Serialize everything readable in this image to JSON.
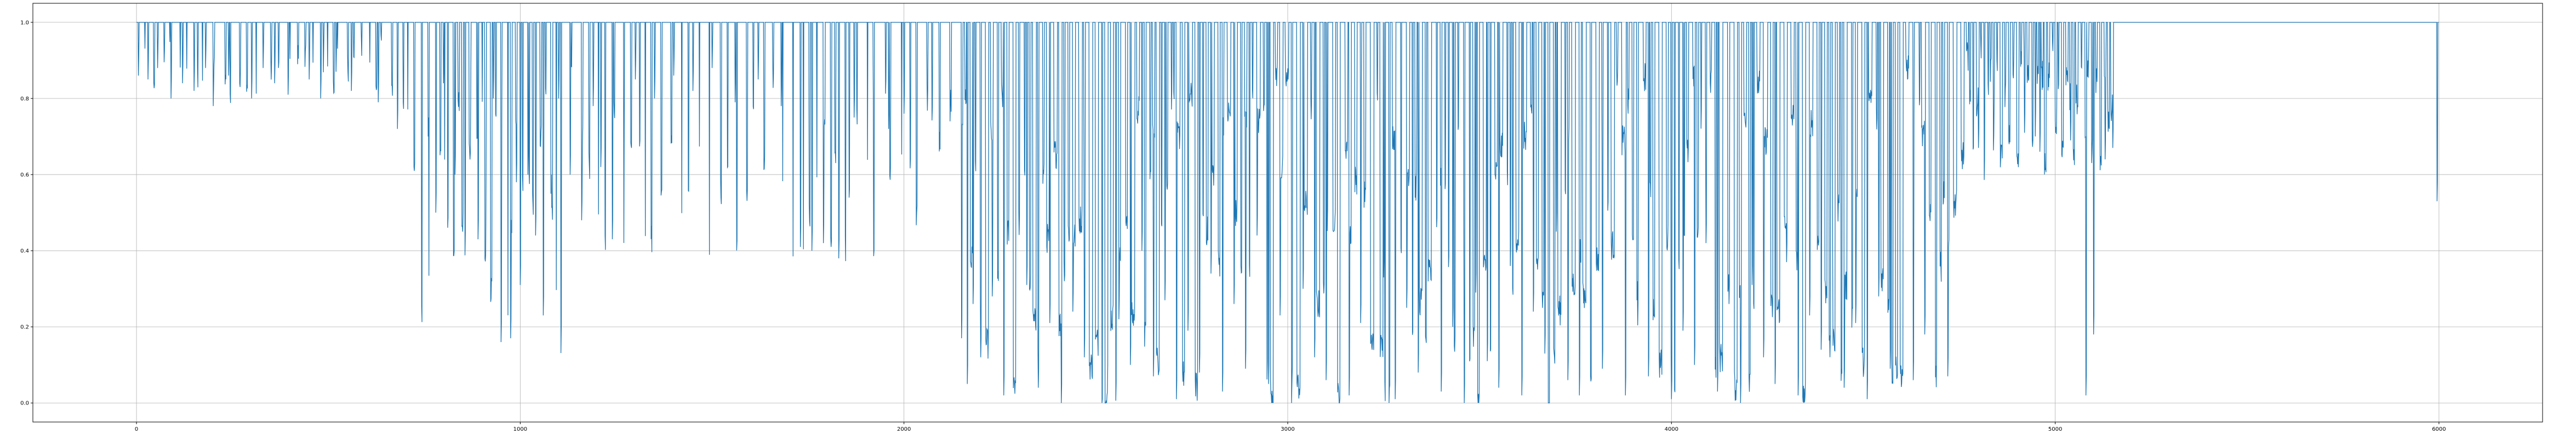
{
  "chart_data": {
    "type": "line",
    "title": "",
    "xlabel": "",
    "ylabel": "",
    "xlim": [
      -270,
      6270
    ],
    "ylim": [
      -0.05,
      1.05
    ],
    "grid": true,
    "x_ticks": [
      0,
      1000,
      2000,
      3000,
      4000,
      5000,
      6000
    ],
    "y_ticks": [
      0.0,
      0.2,
      0.4,
      0.6,
      0.8,
      1.0
    ],
    "x_tick_labels": [
      "0",
      "1000",
      "2000",
      "3000",
      "4000",
      "5000",
      "6000"
    ],
    "y_tick_labels": [
      "0.0",
      "0.2",
      "0.4",
      "0.6",
      "0.8",
      "1.0"
    ],
    "n_points": 6000,
    "series": [
      {
        "color": "#1f77b4",
        "note_regions": [
          {
            "x_range": [
              0,
              700
            ],
            "typical_dip_min": 0.78
          },
          {
            "x_range": [
              700,
              1100
            ],
            "typical_dip_min": 0.16
          },
          {
            "x_range": [
              1100,
              2150
            ],
            "typical_dip_min": 0.38
          },
          {
            "x_range": [
              2150,
              4750
            ],
            "typical_dip_min": 0.0
          },
          {
            "x_range": [
              4750,
              5150
            ],
            "typical_dip_min": 0.62
          },
          {
            "x_range": [
              5150,
              6000
            ],
            "typical_dip_min": 1.0
          }
        ],
        "dips": [
          [
            5,
            0.86
          ],
          [
            30,
            0.85
          ],
          [
            55,
            0.88
          ],
          [
            90,
            0.8
          ],
          [
            120,
            0.84
          ],
          [
            150,
            0.82
          ],
          [
            180,
            0.88
          ],
          [
            200,
            0.78
          ],
          [
            240,
            0.86
          ],
          [
            270,
            0.83
          ],
          [
            300,
            0.8
          ],
          [
            330,
            0.88
          ],
          [
            360,
            0.84
          ],
          [
            395,
            0.81
          ],
          [
            420,
            0.89
          ],
          [
            450,
            0.85
          ],
          [
            480,
            0.8
          ],
          [
            520,
            0.87
          ],
          [
            560,
            0.82
          ],
          [
            630,
            0.79
          ],
          [
            680,
            0.72
          ],
          [
            760,
            0.7
          ],
          [
            780,
            0.5
          ],
          [
            800,
            0.84
          ],
          [
            830,
            0.6
          ],
          [
            850,
            0.45
          ],
          [
            870,
            0.75
          ],
          [
            890,
            0.43
          ],
          [
            910,
            0.55
          ],
          [
            930,
            0.8
          ],
          [
            950,
            0.16
          ],
          [
            975,
            0.17
          ],
          [
            990,
            0.58
          ],
          [
            1000,
            0.31
          ],
          [
            1020,
            0.6
          ],
          [
            1040,
            0.44
          ],
          [
            1060,
            0.23
          ],
          [
            1080,
            0.55
          ],
          [
            1100,
            0.8
          ],
          [
            1130,
            0.6
          ],
          [
            1160,
            0.48
          ],
          [
            1190,
            0.78
          ],
          [
            1210,
            0.62
          ],
          [
            1240,
            0.43
          ],
          [
            1270,
            0.66
          ],
          [
            1300,
            0.85
          ],
          [
            1350,
            0.8
          ],
          [
            1400,
            0.86
          ],
          [
            1450,
            0.82
          ],
          [
            1500,
            0.88
          ],
          [
            1560,
            0.79
          ],
          [
            1620,
            0.85
          ],
          [
            1680,
            0.78
          ],
          [
            1730,
            0.41
          ],
          [
            1760,
            0.4
          ],
          [
            1790,
            0.42
          ],
          [
            1830,
            0.38
          ],
          [
            1870,
            0.75
          ],
          [
            1920,
            0.8
          ],
          [
            1960,
            0.72
          ],
          [
            2000,
            0.76
          ],
          [
            2060,
            0.84
          ],
          [
            2120,
            0.74
          ],
          [
            2150,
            0.17
          ],
          [
            2165,
            0.05
          ],
          [
            2180,
            0.26
          ],
          [
            2200,
            0.12
          ],
          [
            2230,
            0.28
          ],
          [
            2260,
            0.02
          ],
          [
            2290,
            0.18
          ],
          [
            2320,
            0.31
          ],
          [
            2350,
            0.04
          ],
          [
            2380,
            0.21
          ],
          [
            2410,
            0.0
          ],
          [
            2440,
            0.24
          ],
          [
            2470,
            0.12
          ],
          [
            2500,
            0.33
          ],
          [
            2530,
            0.05
          ],
          [
            2560,
            0.22
          ],
          [
            2590,
            0.1
          ],
          [
            2620,
            0.4
          ],
          [
            2650,
            0.07
          ],
          [
            2680,
            0.27
          ],
          [
            2710,
            0.01
          ],
          [
            2740,
            0.19
          ],
          [
            2770,
            0.08
          ],
          [
            2800,
            0.34
          ],
          [
            2830,
            0.03
          ],
          [
            2860,
            0.26
          ],
          [
            2890,
            0.09
          ],
          [
            2920,
            0.44
          ],
          [
            2950,
            0.05
          ],
          [
            2980,
            0.23
          ],
          [
            3010,
            0.0
          ],
          [
            3040,
            0.3
          ],
          [
            3070,
            0.12
          ],
          [
            3100,
            0.06
          ],
          [
            3130,
            0.38
          ],
          [
            3160,
            0.02
          ],
          [
            3190,
            0.21
          ],
          [
            3220,
            0.14
          ],
          [
            3250,
            0.33
          ],
          [
            3280,
            0.01
          ],
          [
            3310,
            0.25
          ],
          [
            3340,
            0.08
          ],
          [
            3370,
            0.41
          ],
          [
            3400,
            0.03
          ],
          [
            3430,
            0.2
          ],
          [
            3460,
            0.0
          ],
          [
            3490,
            0.29
          ],
          [
            3520,
            0.11
          ],
          [
            3550,
            0.04
          ],
          [
            3580,
            0.36
          ],
          [
            3610,
            0.02
          ],
          [
            3640,
            0.24
          ],
          [
            3670,
            0.13
          ],
          [
            3700,
            0.45
          ],
          [
            3730,
            0.06
          ],
          [
            3760,
            0.02
          ],
          [
            3790,
            0.22
          ],
          [
            3820,
            0.09
          ],
          [
            3850,
            0.38
          ],
          [
            3880,
            0.02
          ],
          [
            3910,
            0.27
          ],
          [
            3940,
            0.07
          ],
          [
            3970,
            0.33
          ],
          [
            4000,
            0.01
          ],
          [
            4030,
            0.19
          ],
          [
            4060,
            0.1
          ],
          [
            4090,
            0.42
          ],
          [
            4120,
            0.03
          ],
          [
            4150,
            0.26
          ],
          [
            4180,
            0.0
          ],
          [
            4210,
            0.31
          ],
          [
            4240,
            0.12
          ],
          [
            4270,
            0.05
          ],
          [
            4300,
            0.37
          ],
          [
            4330,
            0.02
          ],
          [
            4360,
            0.23
          ],
          [
            4390,
            0.14
          ],
          [
            4420,
            0.4
          ],
          [
            4450,
            0.04
          ],
          [
            4480,
            0.21
          ],
          [
            4510,
            0.01
          ],
          [
            4540,
            0.28
          ],
          [
            4570,
            0.09
          ],
          [
            4600,
            0.35
          ],
          [
            4630,
            0.06
          ],
          [
            4660,
            0.18
          ],
          [
            4690,
            0.09
          ],
          [
            4720,
            0.07
          ],
          [
            4760,
            0.72
          ],
          [
            4800,
            0.67
          ],
          [
            4840,
            0.75
          ],
          [
            4880,
            0.68
          ],
          [
            4920,
            0.71
          ],
          [
            4960,
            0.66
          ],
          [
            5000,
            0.74
          ],
          [
            5040,
            0.69
          ],
          [
            5080,
            0.02
          ],
          [
            5100,
            0.18
          ],
          [
            5130,
            0.64
          ],
          [
            5150,
            0.67
          ],
          [
            5995,
            0.53
          ]
        ]
      }
    ]
  }
}
